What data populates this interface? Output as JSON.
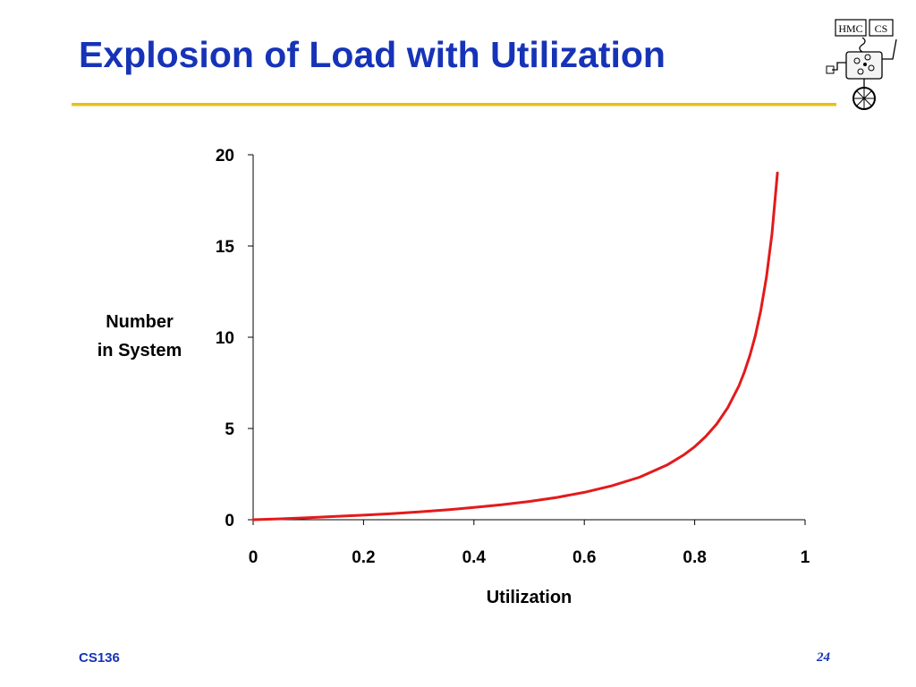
{
  "slide": {
    "title": "Explosion of Load with Utilization",
    "footer_left": "CS136",
    "page_number": "24",
    "logo_text": "HMC CS"
  },
  "colors": {
    "title": "#1633b8",
    "rule": "#e6c21a",
    "series": "#e31a1c",
    "axis": "#000000"
  },
  "icons": {
    "logo": "hmc-cs-robot-unicycle-logo"
  },
  "chart_data": {
    "type": "line",
    "title": "",
    "xlabel": "Utilization",
    "ylabel": "Number in System",
    "ylabel_lines": [
      "Number",
      "in System"
    ],
    "xlim": [
      0,
      1
    ],
    "ylim": [
      0,
      20
    ],
    "x_ticks": [
      0,
      0.2,
      0.4,
      0.6,
      0.8,
      1
    ],
    "x_tick_labels": [
      "0",
      "0.2",
      "0.4",
      "0.6",
      "0.8",
      "1"
    ],
    "y_ticks": [
      0,
      5,
      10,
      15,
      20
    ],
    "y_tick_labels": [
      "0",
      "5",
      "10",
      "15",
      "20"
    ],
    "grid": false,
    "legend": "none",
    "series": [
      {
        "color": "#e31a1c",
        "x": [
          0,
          0.05,
          0.1,
          0.15,
          0.2,
          0.25,
          0.3,
          0.35,
          0.4,
          0.45,
          0.5,
          0.55,
          0.6,
          0.65,
          0.7,
          0.75,
          0.78,
          0.8,
          0.82,
          0.84,
          0.86,
          0.88,
          0.89,
          0.9,
          0.91,
          0.92,
          0.93,
          0.94,
          0.95
        ],
        "y": [
          0,
          0.05,
          0.11,
          0.18,
          0.25,
          0.33,
          0.43,
          0.54,
          0.67,
          0.82,
          1.0,
          1.22,
          1.5,
          1.86,
          2.33,
          3.0,
          3.55,
          4.0,
          4.56,
          5.25,
          6.14,
          7.33,
          8.09,
          9.0,
          10.11,
          11.5,
          13.29,
          15.67,
          19.0
        ]
      }
    ]
  }
}
